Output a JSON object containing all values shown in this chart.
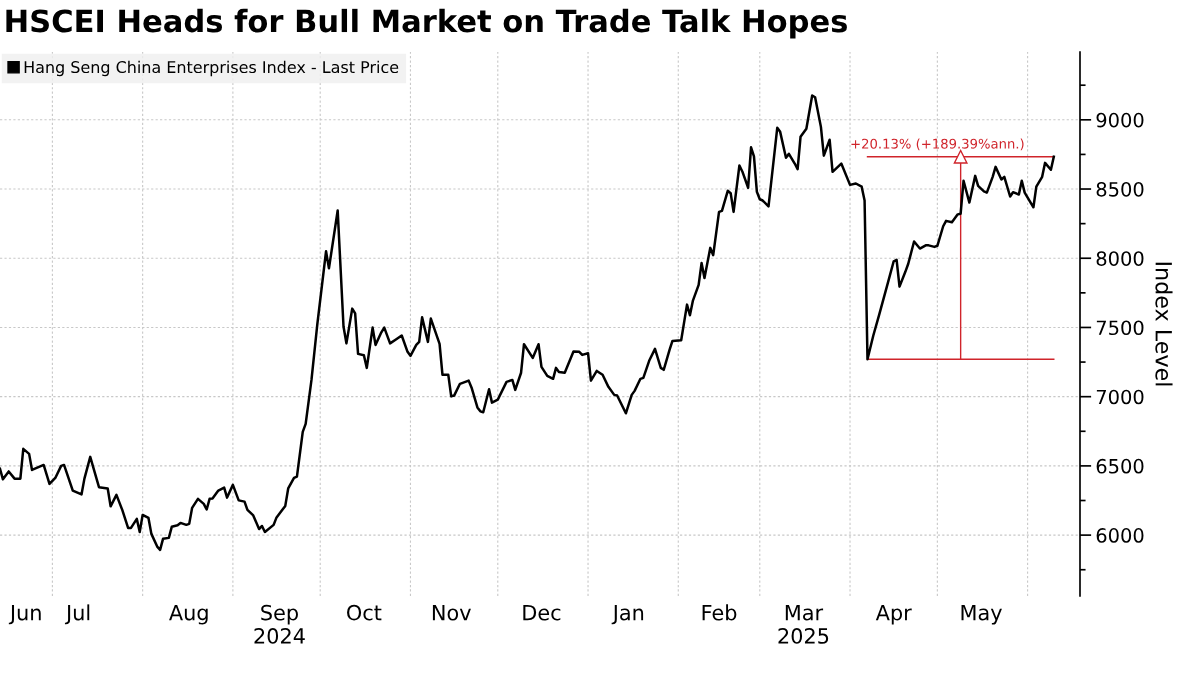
{
  "chart_data": {
    "type": "line",
    "title": "HSCEI Heads for Bull Market on Trade Talk Hopes",
    "ylabel": "Index Level",
    "xlim": [
      "2024-06-13",
      "2025-06-19"
    ],
    "ylim": [
      5560,
      9490
    ],
    "xticks": [
      {
        "value": "2024-07-01",
        "label": null
      },
      {
        "value": "2024-08-01",
        "label": null
      },
      {
        "value": "2024-09-01",
        "label": null
      },
      {
        "value": "2024-10-01",
        "label": null
      },
      {
        "value": "2024-11-01",
        "label": null
      },
      {
        "value": "2024-12-01",
        "label": null
      },
      {
        "value": "2025-01-01",
        "label": null
      },
      {
        "value": "2025-02-01",
        "label": null
      },
      {
        "value": "2025-03-01",
        "label": null
      },
      {
        "value": "2025-04-01",
        "label": null
      },
      {
        "value": "2025-05-01",
        "label": null
      },
      {
        "value": "2025-06-01",
        "label": null
      },
      {
        "value": "2024-06-22",
        "label": "Jun"
      },
      {
        "value": "2024-07-10",
        "label": "Jul"
      },
      {
        "value": "2024-08-17",
        "label": "Aug"
      },
      {
        "value": "2024-09-17",
        "label": "Sep\n2024"
      },
      {
        "value": "2024-10-16",
        "label": "Oct"
      },
      {
        "value": "2024-11-15",
        "label": "Nov"
      },
      {
        "value": "2024-12-16",
        "label": "Dec"
      },
      {
        "value": "2025-01-15",
        "label": "Jan"
      },
      {
        "value": "2025-02-15",
        "label": "Feb"
      },
      {
        "value": "2025-03-16",
        "label": "Mar\n2025"
      },
      {
        "value": "2025-04-16",
        "label": "Apr"
      },
      {
        "value": "2025-05-16",
        "label": "May"
      }
    ],
    "yticks": [
      {
        "value": 5750,
        "label": null
      },
      6000,
      {
        "value": 6250,
        "label": null
      },
      6500,
      {
        "value": 6750,
        "label": null
      },
      7000,
      {
        "value": 7250,
        "label": null
      },
      7500,
      {
        "value": 7750,
        "label": null
      },
      8000,
      {
        "value": 8250,
        "label": null
      },
      8500,
      {
        "value": 8750,
        "label": null
      },
      9000,
      {
        "value": 9250,
        "label": null
      }
    ],
    "grid": true,
    "legend": "top left",
    "series": [
      {
        "name": "Hang Seng China Enterprises Index - Last Price",
        "color": "#000000",
        "x": [
          "2024-06-13",
          "2024-06-14",
          "2024-06-16",
          "2024-06-18",
          "2024-06-20",
          "2024-06-21",
          "2024-06-23",
          "2024-06-24",
          "2024-06-28",
          "2024-06-30",
          "2024-07-02",
          "2024-07-04",
          "2024-07-05",
          "2024-07-08",
          "2024-07-11",
          "2024-07-12",
          "2024-07-14",
          "2024-07-17",
          "2024-07-20",
          "2024-07-21",
          "2024-07-23",
          "2024-07-25",
          "2024-07-27",
          "2024-07-28",
          "2024-07-30",
          "2024-07-31",
          "2024-08-01",
          "2024-08-03",
          "2024-08-04",
          "2024-08-06",
          "2024-08-07",
          "2024-08-08",
          "2024-08-10",
          "2024-08-11",
          "2024-08-13",
          "2024-08-14",
          "2024-08-16",
          "2024-08-17",
          "2024-08-18",
          "2024-08-20",
          "2024-08-22",
          "2024-08-23",
          "2024-08-24",
          "2024-08-25",
          "2024-08-27",
          "2024-08-29",
          "2024-08-30",
          "2024-09-01",
          "2024-09-03",
          "2024-09-05",
          "2024-09-06",
          "2024-09-08",
          "2024-09-10",
          "2024-09-11",
          "2024-09-12",
          "2024-09-15",
          "2024-09-16",
          "2024-09-19",
          "2024-09-20",
          "2024-09-22",
          "2024-09-23",
          "2024-09-25",
          "2024-09-26",
          "2024-09-28",
          "2024-09-30",
          "2024-10-03",
          "2024-10-04",
          "2024-10-07",
          "2024-10-09",
          "2024-10-10",
          "2024-10-12",
          "2024-10-13",
          "2024-10-14",
          "2024-10-16",
          "2024-10-17",
          "2024-10-19",
          "2024-10-20",
          "2024-10-22",
          "2024-10-23",
          "2024-10-25",
          "2024-10-27",
          "2024-10-29",
          "2024-10-31",
          "2024-11-01",
          "2024-11-03",
          "2024-11-04",
          "2024-11-05",
          "2024-11-07",
          "2024-11-08",
          "2024-11-11",
          "2024-11-12",
          "2024-11-14",
          "2024-11-15",
          "2024-11-16",
          "2024-11-18",
          "2024-11-21",
          "2024-11-22",
          "2024-11-24",
          "2024-11-25",
          "2024-11-26",
          "2024-11-28",
          "2024-11-29",
          "2024-12-01",
          "2024-12-04",
          "2024-12-06",
          "2024-12-07",
          "2024-12-09",
          "2024-12-10",
          "2024-12-13",
          "2024-12-15",
          "2024-12-16",
          "2024-12-18",
          "2024-12-20",
          "2024-12-21",
          "2024-12-22",
          "2024-12-24",
          "2024-12-27",
          "2024-12-29",
          "2024-12-30",
          "2025-01-01",
          "2025-01-02",
          "2025-01-04",
          "2025-01-06",
          "2025-01-08",
          "2025-01-10",
          "2025-01-11",
          "2025-01-14",
          "2025-01-16",
          "2025-01-17",
          "2025-01-19",
          "2025-01-20",
          "2025-01-22",
          "2025-01-24",
          "2025-01-26",
          "2025-01-27",
          "2025-01-29",
          "2025-01-30",
          "2025-02-02",
          "2025-02-04",
          "2025-02-05",
          "2025-02-06",
          "2025-02-08",
          "2025-02-09",
          "2025-02-10",
          "2025-02-12",
          "2025-02-13",
          "2025-02-15",
          "2025-02-16",
          "2025-02-18",
          "2025-02-19",
          "2025-02-20",
          "2025-02-22",
          "2025-02-23",
          "2025-02-25",
          "2025-02-26",
          "2025-02-27",
          "2025-02-28",
          "2025-03-01",
          "2025-03-02",
          "2025-03-04",
          "2025-03-07",
          "2025-03-08",
          "2025-03-10",
          "2025-03-11",
          "2025-03-13",
          "2025-03-14",
          "2025-03-15",
          "2025-03-17",
          "2025-03-19",
          "2025-03-20",
          "2025-03-22",
          "2025-03-23",
          "2025-03-25",
          "2025-03-26",
          "2025-03-29",
          "2025-04-01",
          "2025-04-03",
          "2025-04-05",
          "2025-04-06",
          "2025-04-07",
          "2025-04-09",
          "2025-04-11",
          "2025-04-14",
          "2025-04-16",
          "2025-04-17",
          "2025-04-18",
          "2025-04-20",
          "2025-04-21",
          "2025-04-23",
          "2025-04-25",
          "2025-04-27",
          "2025-04-28",
          "2025-04-30",
          "2025-05-01",
          "2025-05-03",
          "2025-05-04",
          "2025-05-06",
          "2025-05-08",
          "2025-05-09",
          "2025-05-10",
          "2025-05-12",
          "2025-05-14",
          "2025-05-15",
          "2025-05-17",
          "2025-05-18",
          "2025-05-20",
          "2025-05-21",
          "2025-05-23",
          "2025-05-24",
          "2025-05-26",
          "2025-05-27",
          "2025-05-29",
          "2025-05-30",
          "2025-05-31",
          "2025-06-03",
          "2025-06-04",
          "2025-06-06",
          "2025-06-07",
          "2025-06-09",
          "2025-06-10"
        ],
        "values": [
          6479,
          6403,
          6460,
          6408,
          6408,
          6623,
          6587,
          6471,
          6507,
          6370,
          6413,
          6500,
          6507,
          6322,
          6294,
          6408,
          6565,
          6346,
          6337,
          6208,
          6291,
          6182,
          6052,
          6052,
          6117,
          6023,
          6146,
          6124,
          6009,
          5917,
          5893,
          5973,
          5980,
          6060,
          6071,
          6088,
          6074,
          6081,
          6197,
          6262,
          6226,
          6185,
          6262,
          6265,
          6322,
          6343,
          6271,
          6363,
          6251,
          6242,
          6182,
          6142,
          6044,
          6066,
          6023,
          6074,
          6128,
          6211,
          6337,
          6413,
          6423,
          6746,
          6804,
          7121,
          7522,
          8050,
          7927,
          8345,
          7507,
          7385,
          7636,
          7602,
          7309,
          7299,
          7208,
          7499,
          7374,
          7465,
          7499,
          7385,
          7413,
          7442,
          7324,
          7295,
          7374,
          7396,
          7573,
          7396,
          7564,
          7382,
          7158,
          7158,
          7002,
          7008,
          7093,
          7116,
          7065,
          6922,
          6894,
          6888,
          7054,
          6957,
          6979,
          7107,
          7121,
          7049,
          7173,
          7379,
          7280,
          7379,
          7215,
          7150,
          7129,
          7208,
          7179,
          7173,
          7327,
          7324,
          7302,
          7314,
          7116,
          7186,
          7158,
          7071,
          7013,
          7008,
          6880,
          7013,
          7042,
          7129,
          7136,
          7259,
          7345,
          7208,
          7194,
          7338,
          7403,
          7408,
          7665,
          7588,
          7692,
          7808,
          7965,
          7858,
          8075,
          8022,
          8335,
          8342,
          8487,
          8470,
          8335,
          8670,
          8627,
          8509,
          8801,
          8736,
          8480,
          8426,
          8417,
          8374,
          8942,
          8913,
          8726,
          8754,
          8684,
          8643,
          8877,
          8935,
          9176,
          9163,
          8949,
          8741,
          8856,
          8624,
          8684,
          8530,
          8540,
          8517,
          8417,
          7270,
          7442,
          7591,
          7822,
          7978,
          7988,
          7795,
          7902,
          7960,
          8121,
          8070,
          8093,
          8093,
          8082,
          8090,
          8231,
          8270,
          8260,
          8317,
          8322,
          8560,
          8402,
          8595,
          8523,
          8483,
          8474,
          8588,
          8660,
          8569,
          8588,
          8446,
          8477,
          8460,
          8560,
          8474,
          8368,
          8517,
          8588,
          8689,
          8639,
          8733
        ]
      },
      {
        "color": "#d0242b",
        "x": [
          "2025-04-07",
          "2025-06-10"
        ],
        "values": [
          7270,
          7270
        ]
      },
      {
        "color": "#d0242b",
        "x": [
          "2025-04-07",
          "2025-06-10"
        ],
        "values": [
          8733,
          8733
        ]
      },
      {
        "color": "#d0242b",
        "marker": "triangle",
        "x": [
          "2025-05-09",
          "2025-05-09"
        ],
        "values": [
          7270,
          8733
        ]
      }
    ],
    "annotations": [
      {
        "text": "+20.13% (+189.39%ann.)",
        "x": "2025-05-01",
        "y": 8733
      }
    ]
  }
}
